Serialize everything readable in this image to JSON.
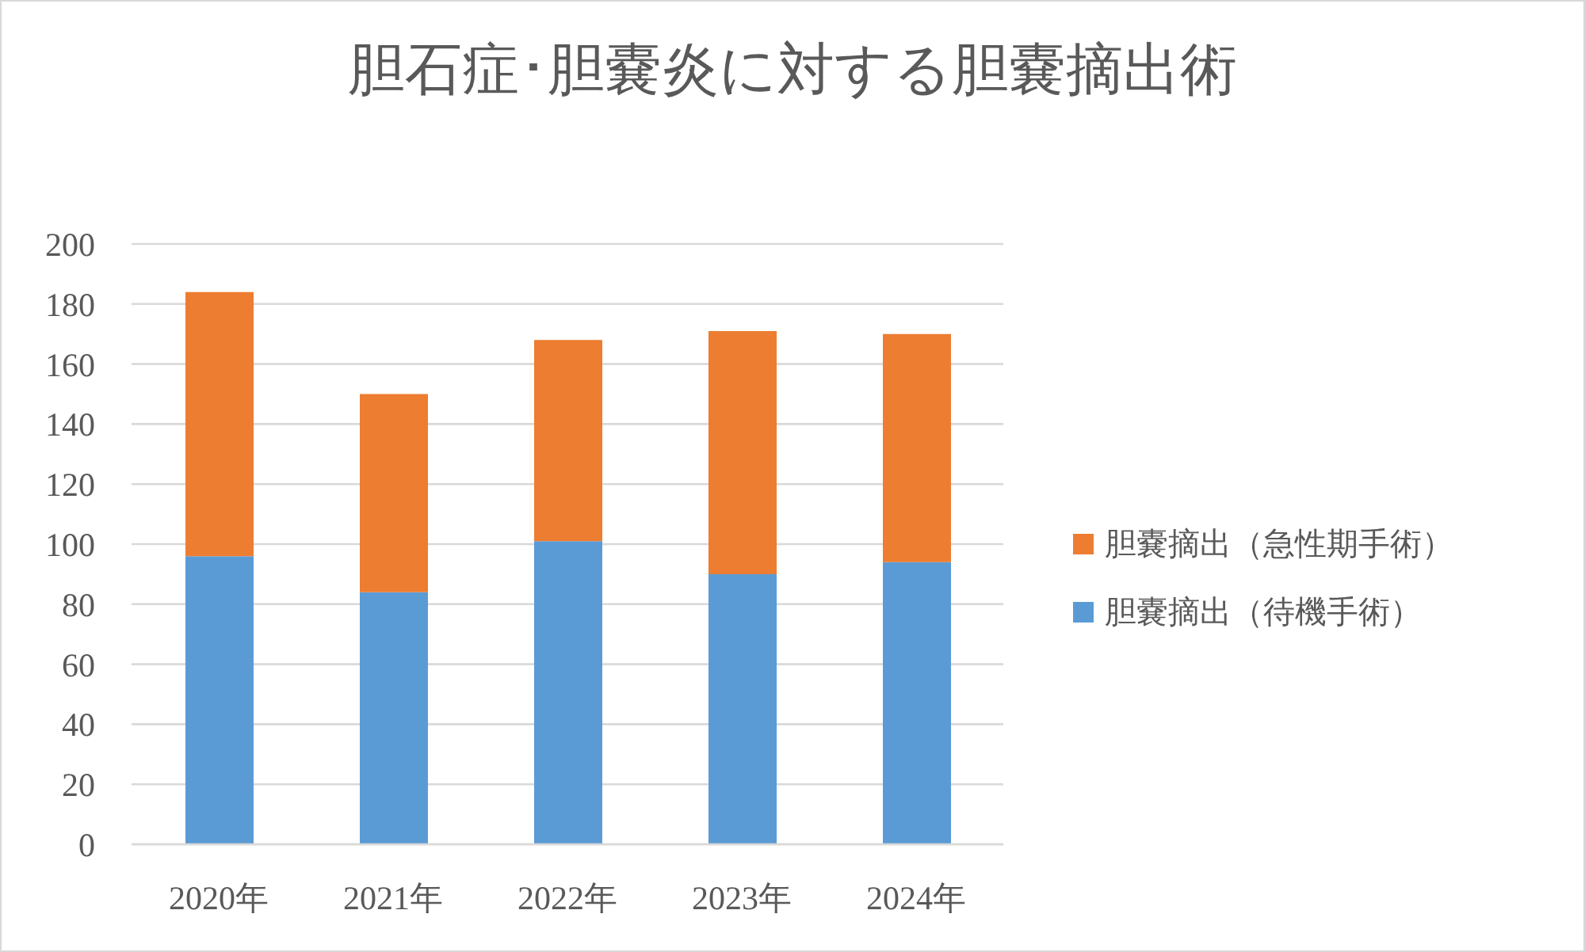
{
  "chart_data": {
    "type": "bar",
    "title": "胆石症･胆嚢炎に対する胆嚢摘出術",
    "categories": [
      "2020年",
      "2021年",
      "2022年",
      "2023年",
      "2024年"
    ],
    "series": [
      {
        "name": "胆嚢摘出（待機手術）",
        "color": "#5b9bd5",
        "values": [
          96,
          84,
          101,
          90,
          94
        ]
      },
      {
        "name": "胆嚢摘出（急性期手術）",
        "color": "#ed7d31",
        "values": [
          88,
          66,
          67,
          81,
          76
        ]
      }
    ],
    "stacked": true,
    "ylim": [
      0,
      200
    ],
    "yticks": [
      0,
      20,
      40,
      60,
      80,
      100,
      120,
      140,
      160,
      180,
      200
    ],
    "grid": "y",
    "legend": "right"
  }
}
